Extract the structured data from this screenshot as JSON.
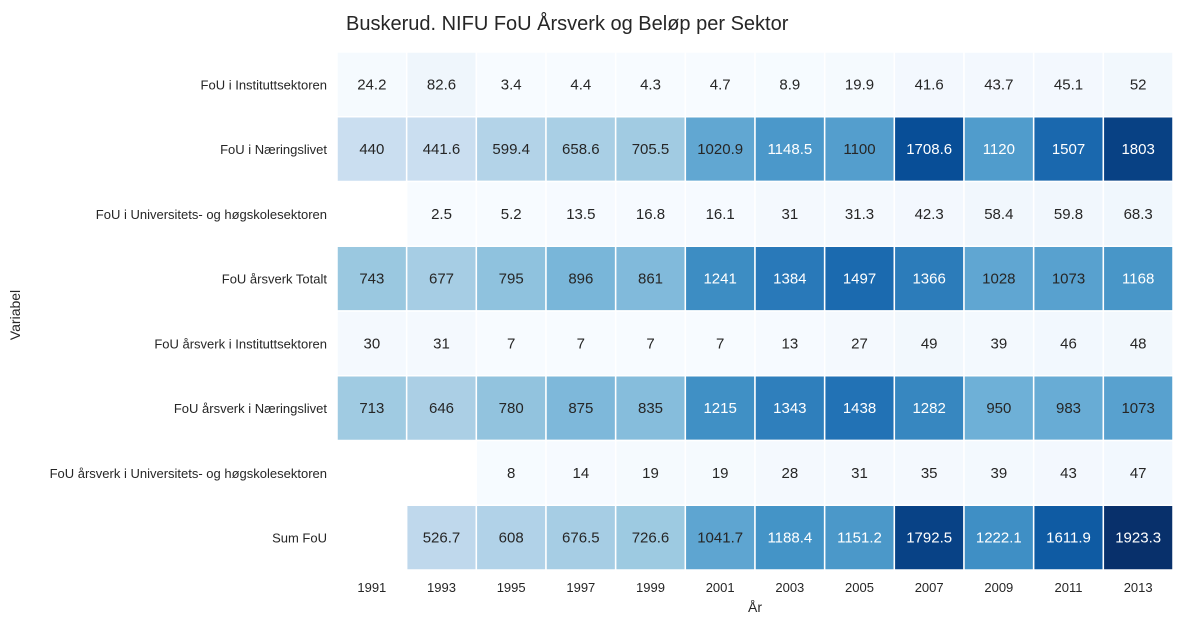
{
  "chart_data": {
    "type": "heatmap",
    "title": "Buskerud. NIFU FoU Årsverk og Beløp per Sektor",
    "xlabel": "År",
    "ylabel": "Variabel",
    "colormap": "Blues",
    "x": [
      "1991",
      "1993",
      "1995",
      "1997",
      "1999",
      "2001",
      "2003",
      "2005",
      "2007",
      "2009",
      "2011",
      "2013"
    ],
    "rows": [
      {
        "label": "FoU i Instituttsektoren",
        "values": [
          24.2,
          82.6,
          3.4,
          4.4,
          4.3,
          4.7,
          8.9,
          19.9,
          41.6,
          43.7,
          45.1,
          52
        ]
      },
      {
        "label": "FoU i Næringslivet",
        "values": [
          440,
          441.6,
          599.4,
          658.6,
          705.5,
          1020.9,
          1148.5,
          1100,
          1708.6,
          1120,
          1507,
          1803
        ]
      },
      {
        "label": "FoU i Universitets- og høgskolesektoren",
        "values": [
          null,
          2.5,
          5.2,
          13.5,
          16.8,
          16.1,
          31,
          31.3,
          42.3,
          58.4,
          59.8,
          68.3
        ]
      },
      {
        "label": "FoU årsverk Totalt",
        "values": [
          743,
          677,
          795,
          896,
          861,
          1241,
          1384,
          1497,
          1366,
          1028,
          1073,
          1168
        ]
      },
      {
        "label": "FoU årsverk i Instituttsektoren",
        "values": [
          30,
          31,
          7,
          7,
          7,
          7,
          13,
          27,
          49,
          39,
          46,
          48
        ]
      },
      {
        "label": "FoU årsverk i Næringslivet",
        "values": [
          713,
          646,
          780,
          875,
          835,
          1215,
          1343,
          1438,
          1282,
          950,
          983,
          1073
        ]
      },
      {
        "label": "FoU årsverk i Universitets- og høgskolesektoren",
        "values": [
          null,
          null,
          8,
          14,
          19,
          19,
          28,
          31,
          35,
          39,
          43,
          47
        ]
      },
      {
        "label": "Sum FoU",
        "values": [
          null,
          526.7,
          608,
          676.5,
          726.6,
          1041.7,
          1188.4,
          1151.2,
          1792.5,
          1222.1,
          1611.9,
          1923.3
        ]
      }
    ],
    "colorbar": false,
    "grid": false
  }
}
